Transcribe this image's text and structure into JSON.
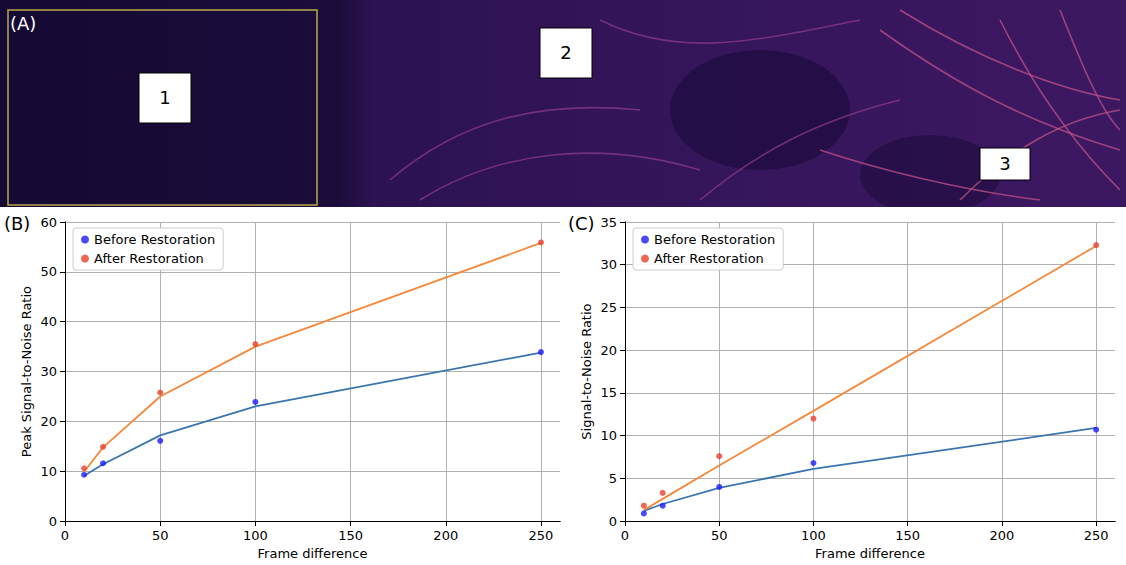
{
  "image_panel": {
    "panel_label": "(A)",
    "regions": [
      "1",
      "2",
      "3"
    ]
  },
  "chart_data": [
    {
      "type": "scatter",
      "panel_label": "(B)",
      "x_label": "Frame difference",
      "y_label": "Peak Signal-to-Noise Ratio",
      "x": [
        10,
        20,
        50,
        100,
        250
      ],
      "series": [
        {
          "name": "Before Restoration",
          "type": "scatter",
          "marker": "o",
          "color": "#1a1aff",
          "values": [
            9.3,
            11.6,
            16.1,
            23.9,
            33.9
          ]
        },
        {
          "name": "After Restoration",
          "type": "scatter",
          "marker": "o",
          "color": "#e8412c",
          "values": [
            10.6,
            14.9,
            25.8,
            35.5,
            55.9
          ]
        },
        {
          "type": "line",
          "line_style": "solid",
          "color": "#3a75af",
          "values": [
            9.1,
            11.4,
            17.2,
            23.0,
            33.8
          ]
        },
        {
          "type": "line",
          "line_style": "solid",
          "color": "#f5883a",
          "values": [
            9.9,
            14.8,
            25.0,
            35.0,
            55.8
          ]
        }
      ],
      "xlim": [
        0,
        260
      ],
      "xticks": [
        0,
        50,
        100,
        150,
        200,
        250
      ],
      "ylim": [
        0,
        60
      ],
      "yticks": [
        0,
        10,
        20,
        30,
        40,
        50,
        60
      ],
      "grid": true,
      "legend": "upper left"
    },
    {
      "type": "scatter",
      "panel_label": "(C)",
      "x_label": "Frame difference",
      "y_label": "Signal-to-Noise Ratio",
      "x": [
        10,
        20,
        50,
        100,
        250
      ],
      "series": [
        {
          "name": "Before Restoration",
          "type": "scatter",
          "marker": "o",
          "color": "#1a1aff",
          "values": [
            0.9,
            1.8,
            4.0,
            6.8,
            10.7
          ]
        },
        {
          "name": "After Restoration",
          "type": "scatter",
          "marker": "o",
          "color": "#e8412c",
          "values": [
            1.8,
            3.3,
            7.6,
            12.0,
            32.3
          ]
        },
        {
          "type": "line",
          "line_style": "solid",
          "color": "#3a75af",
          "values": [
            1.2,
            2.0,
            3.9,
            6.1,
            10.9
          ]
        },
        {
          "type": "line",
          "line_style": "solid",
          "color": "#f5883a",
          "values": [
            1.3,
            2.6,
            6.5,
            12.9,
            32.2
          ]
        }
      ],
      "xlim": [
        0,
        260
      ],
      "xticks": [
        0,
        50,
        100,
        150,
        200,
        250
      ],
      "ylim": [
        0,
        35
      ],
      "yticks": [
        0,
        5,
        10,
        15,
        20,
        25,
        30,
        35
      ],
      "grid": true,
      "legend": "upper left"
    }
  ]
}
